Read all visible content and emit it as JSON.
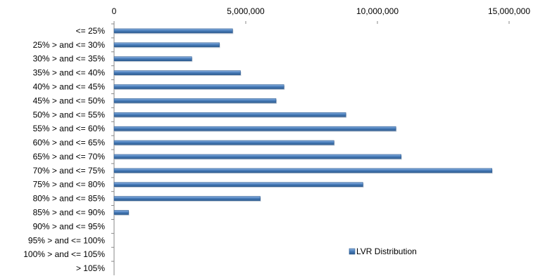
{
  "chart_data": {
    "type": "bar",
    "orientation": "horizontal",
    "title": "",
    "xlabel": "",
    "ylabel": "",
    "xlim": [
      0,
      15000000
    ],
    "x_ticks": [
      {
        "value": 0,
        "label": "0"
      },
      {
        "value": 5000000,
        "label": "5,000,000"
      },
      {
        "value": 10000000,
        "label": "10,000,000"
      },
      {
        "value": 15000000,
        "label": "15,000,000"
      }
    ],
    "x_axis_position": "top",
    "grid": false,
    "legend_position": "bottom-right",
    "bar_color": "#4a7ebb",
    "bar_color_light": "#8fb4e3",
    "bar_color_dark": "#2c5a8f",
    "categories": [
      "<= 25%",
      "25% > and <= 30%",
      "30% > and <= 35%",
      "35% > and <= 40%",
      "40% > and <= 45%",
      "45% > and <= 50%",
      "50% > and <= 55%",
      "55% > and <= 60%",
      "60% > and <= 65%",
      "65% > and <= 70%",
      "70% > and <= 75%",
      "75% > and <= 80%",
      "80% > and <= 85%",
      "85% > and <= 90%",
      "90% > and <= 95%",
      "95% > and <= 100%",
      "100% > and <= 105%",
      "> 105%"
    ],
    "series": [
      {
        "name": "LVR Distribution",
        "values": [
          4500000,
          4000000,
          2950000,
          4800000,
          6450000,
          6150000,
          8800000,
          10700000,
          8350000,
          10900000,
          14350000,
          9450000,
          5550000,
          550000,
          0,
          0,
          0,
          0
        ]
      }
    ]
  }
}
